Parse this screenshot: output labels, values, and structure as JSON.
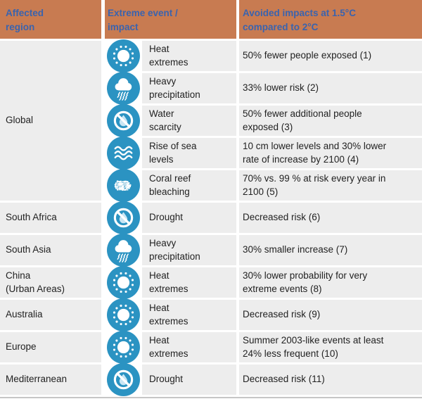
{
  "colors": {
    "header_bg": "#C87B51",
    "header_text": "#3A63AE",
    "cell_bg": "#EDEDED",
    "icon_bg": "#2B93C2",
    "icon_glyph": "#FFFFFF",
    "water_drop": "#C9E6F4",
    "body_text": "#222222",
    "bottom_rule": "#C6C6C6"
  },
  "table": {
    "headers": [
      {
        "id": "region",
        "label": "Affected\nregion"
      },
      {
        "id": "impact",
        "label": "Extreme event /\nimpact"
      },
      {
        "id": "avoided",
        "label": "Avoided impacts at 1.5°C\ncompared to 2°C"
      }
    ],
    "groups": [
      {
        "region": "Global",
        "rows": [
          {
            "icon": "sun",
            "impact": "Heat\nextremes",
            "avoided": "50% fewer people exposed (1)"
          },
          {
            "icon": "rain-cloud",
            "impact": "Heavy\nprecipitation",
            "avoided": "33% lower risk (2)"
          },
          {
            "icon": "no-water",
            "impact": "Water\nscarcity",
            "avoided": "50% fewer additional people\nexposed (3)"
          },
          {
            "icon": "waves",
            "impact": "Rise of sea\nlevels",
            "avoided": "10 cm lower levels and 30% lower\nrate of increase by 2100 (4)"
          },
          {
            "icon": "coral",
            "impact": "Coral reef\nbleaching",
            "avoided": "70% vs. 99 % at risk every year in\n2100 (5)"
          }
        ]
      },
      {
        "region": "South Africa",
        "rows": [
          {
            "icon": "no-water",
            "impact": "Drought",
            "avoided": "Decreased risk (6)"
          }
        ]
      },
      {
        "region": "South Asia",
        "rows": [
          {
            "icon": "rain-cloud",
            "impact": "Heavy\nprecipitation",
            "avoided": "30% smaller increase (7)"
          }
        ]
      },
      {
        "region": "China\n(Urban Areas)",
        "rows": [
          {
            "icon": "sun",
            "impact": "Heat\nextremes",
            "avoided": "30% lower probability for very\nextreme events (8)"
          }
        ]
      },
      {
        "region": "Australia",
        "rows": [
          {
            "icon": "sun",
            "impact": "Heat\nextremes",
            "avoided": "Decreased risk (9)"
          }
        ]
      },
      {
        "region": "Europe",
        "rows": [
          {
            "icon": "sun",
            "impact": "Heat\nextremes",
            "avoided": "Summer 2003-like events at least\n24% less frequent (10)"
          }
        ]
      },
      {
        "region": "Mediterranean",
        "rows": [
          {
            "icon": "no-water",
            "impact": "Drought",
            "avoided": "Decreased risk (11)"
          }
        ]
      }
    ]
  }
}
